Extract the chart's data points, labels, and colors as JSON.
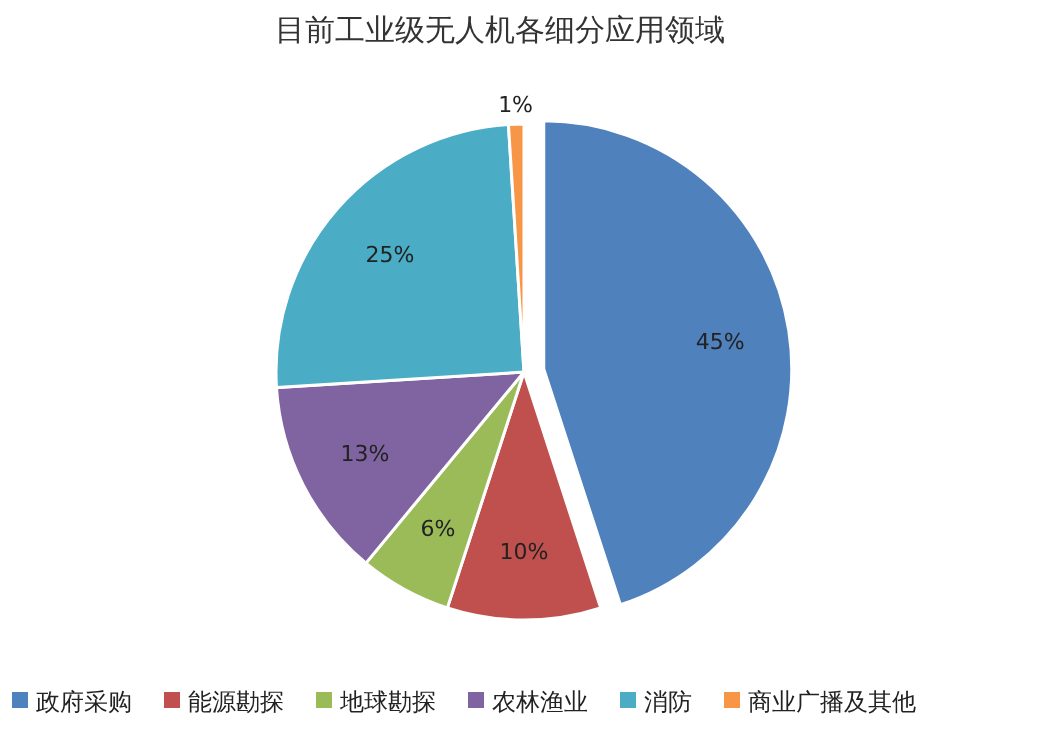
{
  "chart_data": {
    "type": "pie",
    "title": "目前工业级无人机各细分应用领域",
    "categories": [
      "政府采购",
      "能源勘探",
      "地球勘探",
      "农林渔业",
      "消防",
      "商业广播及其他"
    ],
    "values": [
      45,
      10,
      6,
      13,
      25,
      1
    ],
    "colors": [
      "#4f81bd",
      "#c0504d",
      "#9bbb59",
      "#8064a2",
      "#4bacc6",
      "#f79646"
    ],
    "value_labels": [
      "45%",
      "10%",
      "6%",
      "13%",
      "25%",
      "1%"
    ],
    "legend": "bottom"
  }
}
